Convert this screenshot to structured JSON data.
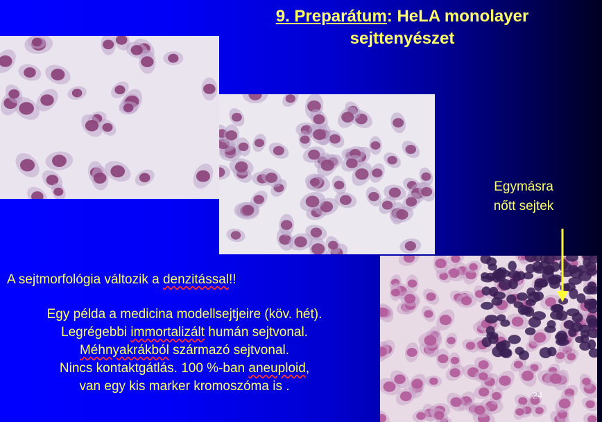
{
  "title": {
    "number_part": "9. Preparátum",
    "rest_line1": ": HeLA monolayer",
    "line2": "sejttenyészet"
  },
  "overlap_label": {
    "line1": "Egymásra",
    "line2": "nőtt sejtek"
  },
  "morphology": {
    "before": "A sejtmorfológia változik a ",
    "underlined": "denzitással",
    "after": "!!"
  },
  "body": {
    "line1": "Egy példa a medicina modellsejtjeire (köv. hét).",
    "line2_before": "Legrégebbi ",
    "line2_underlined": "immortalizált",
    "line2_after": " humán sejtvonal.",
    "line3_underlined": "Méhnyakrákból",
    "line3_after": " származó sejtvonal.",
    "line4_before": "Nincs kontaktgátlás. 100 %-ban ",
    "line4_underlined": "aneuploid",
    "line4_after": ",",
    "line5": "van egy kis marker kromoszóma is ."
  },
  "page_number": "24",
  "colors": {
    "text_yellow": "#ffff66",
    "background_left": "#0000ff",
    "background_right": "#000022",
    "cell_cytoplasm": "#bfa6cc",
    "cell_nucleus": "#8a3f78",
    "dense_cluster": "#3a1f55"
  }
}
